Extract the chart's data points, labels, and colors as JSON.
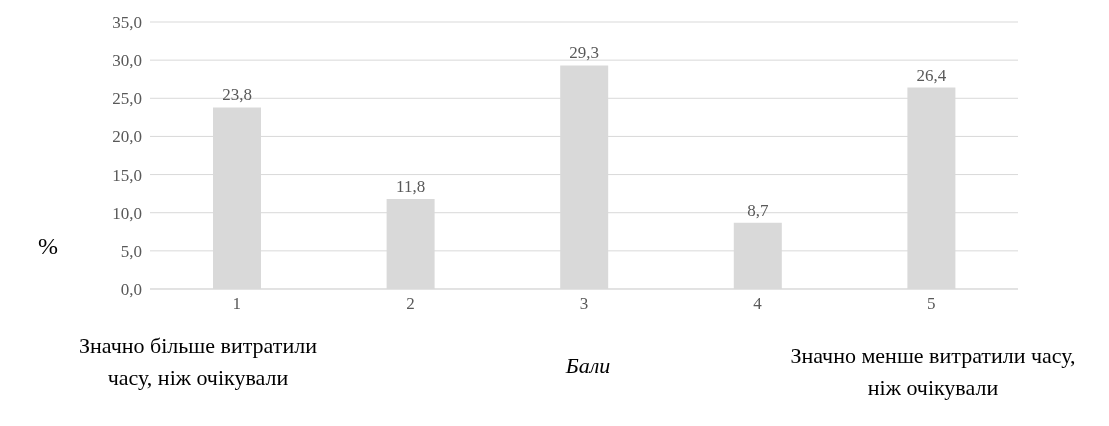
{
  "chart_data": {
    "type": "bar",
    "categories": [
      "1",
      "2",
      "3",
      "4",
      "5"
    ],
    "values": [
      23.8,
      11.8,
      29.3,
      8.7,
      26.4
    ],
    "color": "#d9d9d9",
    "value_labels": [
      "23,8",
      "11,8",
      "29,3",
      "8,7",
      "26,4"
    ],
    "ylim": [
      0,
      35
    ],
    "yticks": [
      {
        "value": 0,
        "label": "0,0"
      },
      {
        "value": 5,
        "label": "5,0"
      },
      {
        "value": 10,
        "label": "10,0"
      },
      {
        "value": 15,
        "label": "15,0"
      },
      {
        "value": 20,
        "label": "20,0"
      },
      {
        "value": 25,
        "label": "25,0"
      },
      {
        "value": 30,
        "label": "30,0"
      },
      {
        "value": 35,
        "label": "35,0"
      }
    ],
    "ylabel": "%",
    "xlabel": "Бали",
    "grid": "y",
    "annotations": [
      "Значно більше витратили часу, ніж очікували",
      "Значно менше витратили часу, ніж очікували"
    ]
  }
}
